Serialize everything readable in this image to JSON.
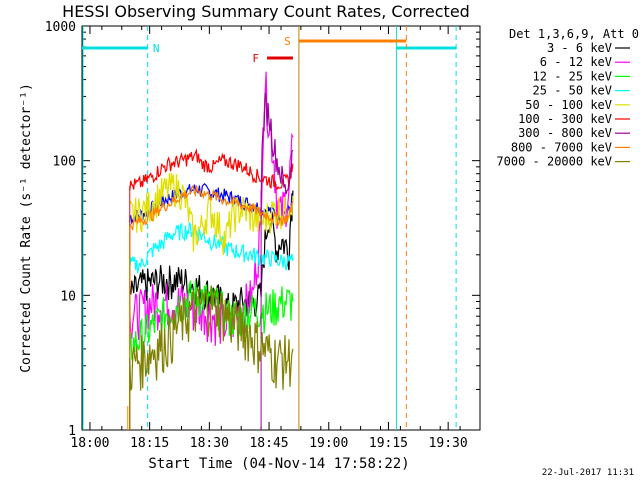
{
  "chart_data": {
    "type": "line",
    "title": "HESSI Observing Summary Count Rates, Corrected",
    "xlabel": "Start Time (04-Nov-14 17:58:22)",
    "ylabel": "Corrected Count Rate (s⁻¹ detector⁻¹)",
    "yscale": "log",
    "ylim": [
      1,
      1000
    ],
    "xlim_min": [
      -2,
      38
    ],
    "ytick_labels": [
      "1",
      "10",
      "100",
      "1000"
    ],
    "xtick_labels": [
      "18:00",
      "18:15",
      "18:30",
      "18:45",
      "19:00",
      "19:15",
      "19:30"
    ],
    "footer_date": "22-Jul-2017 11:31",
    "legend": {
      "header": "Det 1,3,6,9, Att 0",
      "placement": "right"
    },
    "flags": [
      {
        "label": "N",
        "color": "#00e0e0"
      },
      {
        "label": "S",
        "color": "#ff8000"
      },
      {
        "label": "F",
        "color": "#e00000"
      }
    ],
    "series": [
      {
        "name": "3 - 6 keV",
        "color": "#000000",
        "values": [
          [
            12,
            10
          ],
          [
            15,
            12
          ],
          [
            20,
            13
          ],
          [
            25,
            13
          ],
          [
            28,
            12
          ],
          [
            33,
            10
          ],
          [
            37,
            8
          ],
          [
            40,
            9
          ],
          [
            43,
            9
          ],
          [
            45,
            10
          ],
          [
            47,
            40
          ],
          [
            48,
            30
          ],
          [
            49,
            22
          ],
          [
            50,
            26
          ],
          [
            52,
            22
          ],
          [
            53,
            60
          ]
        ]
      },
      {
        "name": "6 - 12 keV",
        "color": "#ff00ff",
        "values": [
          [
            12,
            7
          ],
          [
            15,
            8
          ],
          [
            18,
            9
          ],
          [
            20,
            9
          ],
          [
            25,
            9
          ],
          [
            28,
            8
          ],
          [
            30,
            8
          ],
          [
            33,
            7
          ],
          [
            37,
            6
          ],
          [
            40,
            8
          ],
          [
            43,
            10
          ],
          [
            45,
            30
          ],
          [
            46,
            370
          ],
          [
            47,
            200
          ],
          [
            48,
            120
          ],
          [
            49,
            50
          ],
          [
            50,
            40
          ],
          [
            52,
            60
          ],
          [
            53,
            150
          ]
        ]
      },
      {
        "name": "12 - 25 keV",
        "color": "#00ff00",
        "values": [
          [
            12,
            4
          ],
          [
            15,
            5
          ],
          [
            18,
            6
          ],
          [
            20,
            7
          ],
          [
            25,
            9
          ],
          [
            28,
            10
          ],
          [
            30,
            10
          ],
          [
            33,
            9
          ],
          [
            37,
            7
          ],
          [
            40,
            7
          ],
          [
            43,
            8
          ],
          [
            47,
            8
          ],
          [
            50,
            9
          ],
          [
            53,
            9
          ]
        ]
      },
      {
        "name": "25 - 50 keV",
        "color": "#00ffff",
        "values": [
          [
            12,
            17
          ],
          [
            15,
            17
          ],
          [
            18,
            22
          ],
          [
            20,
            24
          ],
          [
            22,
            28
          ],
          [
            25,
            30
          ],
          [
            28,
            31
          ],
          [
            30,
            28
          ],
          [
            33,
            25
          ],
          [
            35,
            24
          ],
          [
            37,
            22
          ],
          [
            40,
            21
          ],
          [
            43,
            20
          ],
          [
            45,
            19
          ],
          [
            47,
            19
          ],
          [
            50,
            18
          ],
          [
            53,
            18
          ]
        ]
      },
      {
        "name": "50 - 100 keV",
        "color": "#e0e000",
        "values": [
          [
            12,
            40
          ],
          [
            15,
            42
          ],
          [
            18,
            50
          ],
          [
            20,
            58
          ],
          [
            23,
            65
          ],
          [
            25,
            60
          ],
          [
            27,
            38
          ],
          [
            28,
            28
          ],
          [
            30,
            32
          ],
          [
            32,
            45
          ],
          [
            34,
            35
          ],
          [
            36,
            26
          ],
          [
            38,
            40
          ],
          [
            40,
            45
          ],
          [
            43,
            38
          ],
          [
            45,
            35
          ],
          [
            47,
            40
          ],
          [
            49,
            45
          ],
          [
            51,
            42
          ],
          [
            53,
            55
          ]
        ]
      },
      {
        "name": "100 - 300 keV",
        "color": "#ff0000",
        "values": [
          [
            12,
            65
          ],
          [
            15,
            68
          ],
          [
            18,
            78
          ],
          [
            20,
            88
          ],
          [
            22,
            95
          ],
          [
            25,
            100
          ],
          [
            27,
            105
          ],
          [
            29,
            108
          ],
          [
            30,
            95
          ],
          [
            33,
            90
          ],
          [
            35,
            100
          ],
          [
            37,
            98
          ],
          [
            40,
            92
          ],
          [
            43,
            80
          ],
          [
            45,
            75
          ],
          [
            48,
            70
          ],
          [
            50,
            68
          ],
          [
            52,
            72
          ],
          [
            53,
            95
          ]
        ]
      },
      {
        "name": "300 - 800 keV",
        "color": "#a000a0",
        "values": [
          [
            45,
            60
          ],
          [
            46,
            260
          ],
          [
            47,
            220
          ],
          [
            48,
            140
          ],
          [
            49,
            100
          ],
          [
            50,
            80
          ],
          [
            51,
            60
          ],
          [
            52,
            70
          ],
          [
            53,
            120
          ]
        ]
      },
      {
        "name": "800 - 7000 keV",
        "color": "#ff8000",
        "values": [
          [
            12,
            33
          ],
          [
            15,
            36
          ],
          [
            18,
            40
          ],
          [
            20,
            45
          ],
          [
            23,
            50
          ],
          [
            25,
            55
          ],
          [
            27,
            58
          ],
          [
            29,
            60
          ],
          [
            31,
            57
          ],
          [
            33,
            55
          ],
          [
            35,
            52
          ],
          [
            37,
            50
          ],
          [
            40,
            47
          ],
          [
            43,
            44
          ],
          [
            45,
            41
          ],
          [
            48,
            38
          ],
          [
            50,
            36
          ],
          [
            52,
            38
          ],
          [
            53,
            50
          ]
        ]
      },
      {
        "name": "7000 - 20000 keV",
        "color": "#808000",
        "values": [
          [
            12,
            3
          ],
          [
            15,
            3.5
          ],
          [
            18,
            4
          ],
          [
            20,
            4.5
          ],
          [
            22,
            5
          ],
          [
            24,
            6
          ],
          [
            26,
            7
          ],
          [
            28,
            8
          ],
          [
            30,
            8.5
          ],
          [
            32,
            9
          ],
          [
            34,
            8.5
          ],
          [
            36,
            7.5
          ],
          [
            38,
            6.5
          ],
          [
            40,
            6
          ],
          [
            43,
            5
          ],
          [
            46,
            4
          ],
          [
            49,
            3.5
          ],
          [
            52,
            3.5
          ],
          [
            53,
            4
          ]
        ]
      }
    ],
    "blue_series": {
      "color": "#0000ff",
      "values": [
        [
          12,
          38
        ],
        [
          15,
          40
        ],
        [
          18,
          45
        ],
        [
          20,
          50
        ],
        [
          23,
          55
        ],
        [
          25,
          58
        ],
        [
          27,
          60
        ],
        [
          29,
          62
        ],
        [
          31,
          60
        ],
        [
          33,
          58
        ],
        [
          35,
          56
        ],
        [
          37,
          54
        ],
        [
          40,
          50
        ],
        [
          43,
          47
        ],
        [
          45,
          44
        ],
        [
          48,
          42
        ],
        [
          50,
          40
        ],
        [
          52,
          43
        ],
        [
          53,
          55
        ]
      ]
    }
  }
}
